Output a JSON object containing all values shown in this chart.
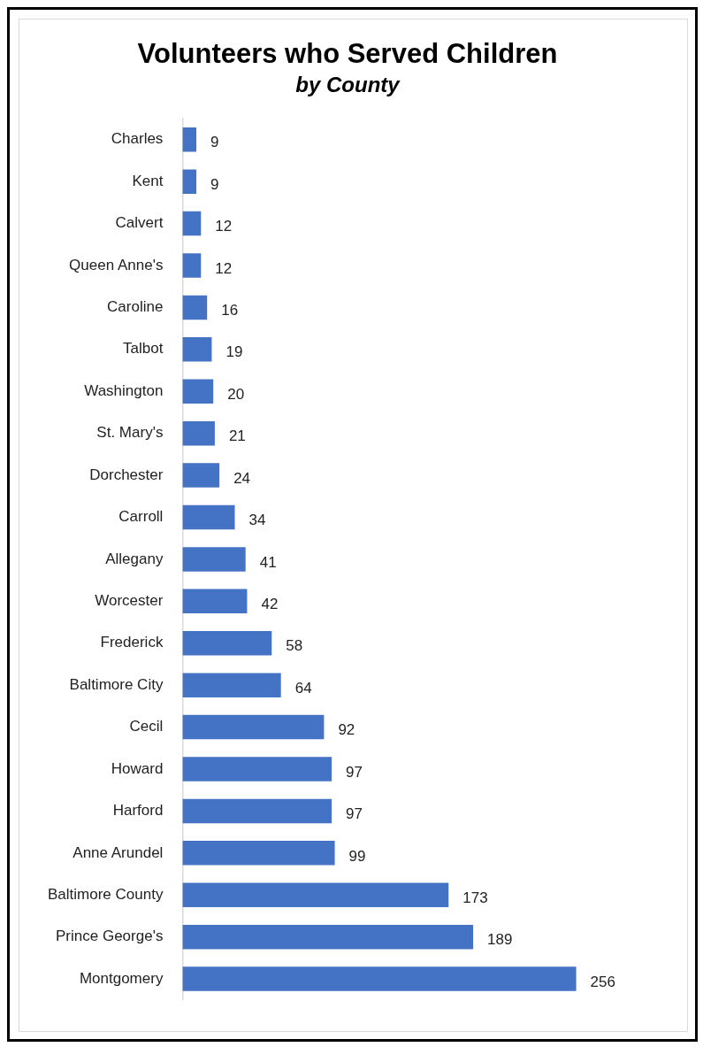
{
  "chart_data": {
    "type": "bar",
    "orientation": "horizontal",
    "title": "Volunteers who Served Children",
    "subtitle": "by County",
    "categories": [
      "Charles",
      "Kent",
      "Calvert",
      "Queen Anne's",
      "Caroline",
      "Talbot",
      "Washington",
      "St. Mary's",
      "Dorchester",
      "Carroll",
      "Allegany",
      "Worcester",
      "Frederick",
      "Baltimore City",
      "Cecil",
      "Howard",
      "Harford",
      "Anne Arundel",
      "Baltimore County",
      "Prince George's",
      "Montgomery"
    ],
    "values": [
      9,
      9,
      12,
      12,
      16,
      19,
      20,
      21,
      24,
      34,
      41,
      42,
      58,
      64,
      92,
      97,
      97,
      99,
      173,
      189,
      256
    ],
    "color": "#4472c4",
    "data_labels": true
  }
}
